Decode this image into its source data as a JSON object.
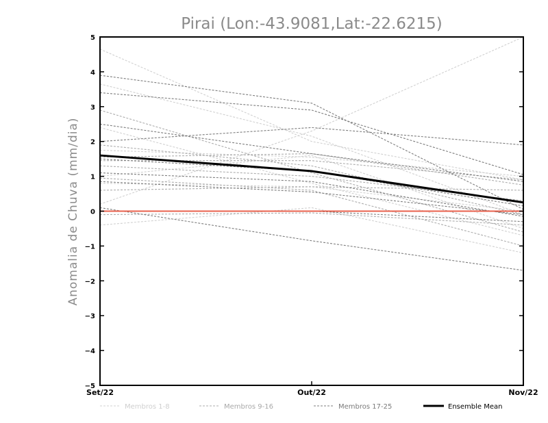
{
  "chart_data": {
    "type": "line",
    "title": "Pirai (Lon:-43.9081,Lat:-22.6215)",
    "xlabel": "",
    "ylabel": "Anomalia de Chuva (mm/dia)",
    "categories": [
      "Set/22",
      "Out/22",
      "Nov/22"
    ],
    "ylim": [
      -5,
      5
    ],
    "yticks": [
      -5,
      -4,
      -3,
      -2,
      -1,
      0,
      1,
      2,
      3,
      4,
      5
    ],
    "grid": false,
    "legend_position": "bottom",
    "groups": [
      {
        "name": "Membros 1-8",
        "color": "#d0d0d0"
      },
      {
        "name": "Membros 9-16",
        "color": "#acacac"
      },
      {
        "name": "Membros 17-25",
        "color": "#7c7c7c"
      }
    ],
    "series": [
      {
        "group": 0,
        "values": [
          4.65,
          2.0,
          0.9
        ]
      },
      {
        "group": 0,
        "values": [
          3.65,
          2.15,
          -0.1
        ]
      },
      {
        "group": 0,
        "values": [
          0.2,
          2.3,
          5.0
        ]
      },
      {
        "group": 0,
        "values": [
          -0.4,
          0.1,
          -1.2
        ]
      },
      {
        "group": 0,
        "values": [
          1.75,
          1.55,
          1.0
        ]
      },
      {
        "group": 0,
        "values": [
          0.8,
          0.7,
          0.0
        ]
      },
      {
        "group": 0,
        "values": [
          2.4,
          0.8,
          -0.7
        ]
      },
      {
        "group": 0,
        "values": [
          1.0,
          1.6,
          -0.5
        ]
      },
      {
        "group": 1,
        "values": [
          2.9,
          1.1,
          -0.6
        ]
      },
      {
        "group": 1,
        "values": [
          1.55,
          1.65,
          0.75
        ]
      },
      {
        "group": 1,
        "values": [
          0.6,
          0.7,
          0.6
        ]
      },
      {
        "group": 1,
        "values": [
          1.9,
          1.3,
          -0.1
        ]
      },
      {
        "group": 1,
        "values": [
          1.3,
          1.0,
          0.3
        ]
      },
      {
        "group": 1,
        "values": [
          0.95,
          0.6,
          -1.0
        ]
      },
      {
        "group": 1,
        "values": [
          -0.1,
          -0.05,
          -0.4
        ]
      },
      {
        "group": 1,
        "values": [
          1.45,
          1.45,
          0.9
        ]
      },
      {
        "group": 2,
        "values": [
          3.9,
          3.1,
          0.05
        ]
      },
      {
        "group": 2,
        "values": [
          2.0,
          2.4,
          1.9
        ]
      },
      {
        "group": 2,
        "values": [
          3.4,
          2.9,
          1.05
        ]
      },
      {
        "group": 2,
        "values": [
          2.5,
          1.65,
          0.85
        ]
      },
      {
        "group": 2,
        "values": [
          1.1,
          0.85,
          -0.15
        ]
      },
      {
        "group": 2,
        "values": [
          0.1,
          -0.85,
          -1.7
        ]
      },
      {
        "group": 2,
        "values": [
          0.0,
          0.0,
          -0.3
        ]
      },
      {
        "group": 2,
        "values": [
          0.85,
          0.55,
          -0.1
        ]
      },
      {
        "group": 2,
        "values": [
          1.5,
          1.15,
          0.15
        ]
      }
    ],
    "mean": {
      "name": "Ensemble Mean",
      "color": "#000000",
      "values": [
        1.6,
        1.15,
        0.25
      ]
    },
    "reference_line": {
      "value": 0,
      "color": "#e8604c"
    }
  }
}
